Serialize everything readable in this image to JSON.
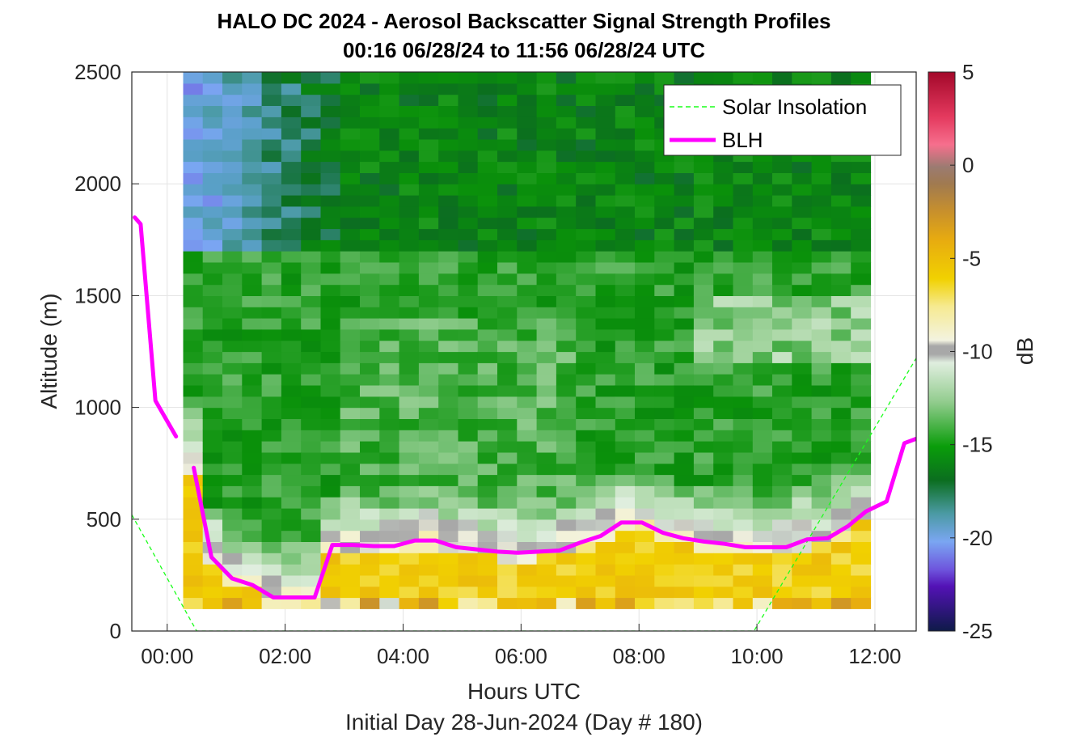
{
  "chart_data": {
    "type": "heatmap",
    "title": "HALO DC 2024 - Aerosol Backscatter Signal Strength Profiles",
    "subtitle": "00:16 06/28/24 to 11:56 06/28/24  UTC",
    "xlabel": "Hours UTC",
    "xlabel2": "Initial Day 28-Jun-2024 (Day # 180)",
    "ylabel": "Altitude (m)",
    "colorbar_label": "dB",
    "xlim": [
      -0.6,
      12.7
    ],
    "ylim": [
      0,
      2500
    ],
    "clim": [
      -25,
      5
    ],
    "grid": true,
    "legend_position": "top-right",
    "x_ticks": [
      0,
      2,
      4,
      6,
      8,
      10,
      12
    ],
    "x_tick_labels": [
      "00:00",
      "02:00",
      "04:00",
      "06:00",
      "08:00",
      "10:00",
      "12:00"
    ],
    "y_ticks": [
      0,
      500,
      1000,
      1500,
      2000,
      2500
    ],
    "y_tick_labels": [
      "0",
      "500",
      "1000",
      "1500",
      "2000",
      "2500"
    ],
    "colorbar_ticks": [
      5,
      0,
      -5,
      -10,
      -15,
      -20,
      -25
    ],
    "colorbar_tick_labels": [
      "5",
      "0",
      "-5",
      "-10",
      "-15",
      "-20",
      "-25"
    ],
    "heatmap_extent": {
      "x_start_hours": 0.27,
      "x_end_hours": 11.93,
      "alt_bottom_m": 100,
      "alt_top_m": 2500,
      "time_step_hours": 0.333,
      "alt_step_m": 50
    },
    "heatmap_description_levels_db": {
      "near_surface_100_to_400m": -7,
      "transition_400_to_700m": -11,
      "boundary_layer_700_to_1700m": -15,
      "upper_1700_to_2500m_early": -20,
      "upper_1700_to_2500m_late": -16
    },
    "series": [
      {
        "name": "Solar Insolation",
        "style": "dashed",
        "color": "#1aff1a",
        "x": [
          -0.6,
          0.5,
          9.95,
          12.7
        ],
        "y": [
          520,
          0,
          0,
          1220
        ]
      },
      {
        "name": "BLH",
        "style": "solid",
        "color": "#ff00ff",
        "segments": [
          {
            "x": [
              -0.55,
              -0.45,
              -0.2,
              0.15
            ],
            "y": [
              1850,
              1820,
              1030,
              870
            ]
          },
          {
            "x": [
              0.45,
              0.75,
              1.1,
              1.45,
              1.8,
              2.15,
              2.5,
              2.8,
              3.15,
              3.5,
              3.85,
              4.2,
              4.55,
              4.9,
              5.25,
              5.6,
              5.95,
              6.3,
              6.65,
              7.0,
              7.35,
              7.7,
              8.05,
              8.4,
              8.75,
              9.1,
              9.45,
              9.8,
              10.15,
              10.5,
              10.85,
              11.2,
              11.55,
              11.85,
              12.2,
              12.5,
              12.7
            ],
            "y": [
              730,
              330,
              235,
              205,
              150,
              150,
              150,
              385,
              385,
              380,
              380,
              405,
              405,
              375,
              365,
              355,
              350,
              355,
              360,
              395,
              425,
              485,
              485,
              440,
              415,
              400,
              390,
              375,
              375,
              375,
              410,
              415,
              470,
              535,
              580,
              840,
              860
            ]
          }
        ]
      }
    ]
  }
}
